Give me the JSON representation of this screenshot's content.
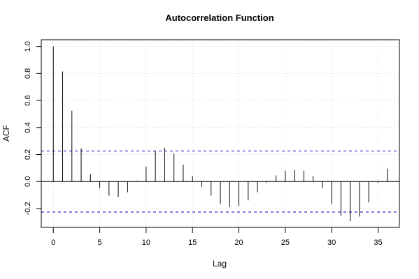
{
  "chart_data": {
    "type": "bar",
    "title": "Autocorrelation Function",
    "xlabel": "Lag",
    "ylabel": "ACF",
    "x": [
      0,
      1,
      2,
      3,
      4,
      5,
      6,
      7,
      8,
      9,
      10,
      11,
      12,
      13,
      14,
      15,
      16,
      17,
      18,
      19,
      20,
      21,
      22,
      23,
      24,
      25,
      26,
      27,
      28,
      29,
      30,
      31,
      32,
      33,
      34,
      35,
      36
    ],
    "values": [
      1.0,
      0.815,
      0.525,
      0.245,
      0.055,
      -0.05,
      -0.105,
      -0.115,
      -0.08,
      0.005,
      0.11,
      0.225,
      0.25,
      0.205,
      0.125,
      0.04,
      -0.04,
      -0.105,
      -0.165,
      -0.19,
      -0.18,
      -0.14,
      -0.08,
      -0.01,
      0.045,
      0.08,
      0.085,
      0.08,
      0.04,
      -0.05,
      -0.165,
      -0.255,
      -0.295,
      -0.26,
      -0.155,
      -0.01,
      0.095
    ],
    "confidence_bound": 0.226,
    "xlim": [
      -1.3,
      37.3
    ],
    "ylim": [
      -0.34,
      1.05
    ],
    "xticks": [
      "0",
      "5",
      "10",
      "15",
      "20",
      "25",
      "30",
      "35"
    ],
    "yticks": [
      "-0.2",
      "0.0",
      "0.2",
      "0.4",
      "0.6",
      "0.8",
      "1.0"
    ],
    "grid": true,
    "colors": {
      "bars": "#000000",
      "bounds": "#0000cc",
      "grid": "#d3d3d3",
      "zero_line": "#000000"
    }
  }
}
